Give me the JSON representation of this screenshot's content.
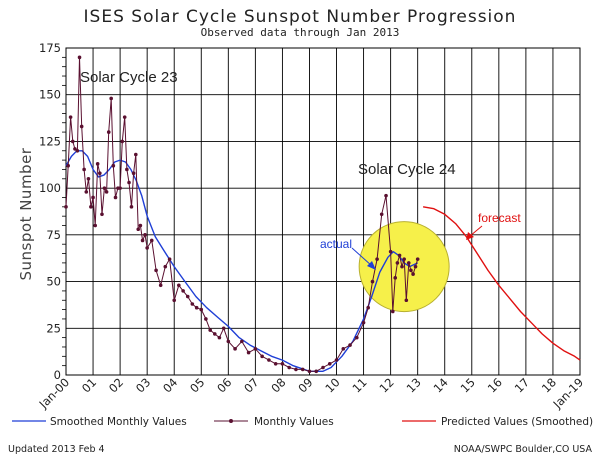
{
  "chart_data": {
    "type": "line",
    "title": "ISES Solar Cycle Sunspot Number Progression",
    "subtitle": "Observed data through Jan 2013",
    "ylabel": "Sunspot Number",
    "xlabel": "",
    "ylim": [
      0,
      175
    ],
    "yticks": [
      0,
      25,
      50,
      75,
      100,
      125,
      150,
      175
    ],
    "xlim": [
      2000.0,
      2019.0
    ],
    "x_tick_labels": [
      {
        "x": 2000,
        "label": "Jan-00"
      },
      {
        "x": 2001,
        "label": "01"
      },
      {
        "x": 2002,
        "label": "02"
      },
      {
        "x": 2003,
        "label": "03"
      },
      {
        "x": 2004,
        "label": "04"
      },
      {
        "x": 2005,
        "label": "05"
      },
      {
        "x": 2006,
        "label": "06"
      },
      {
        "x": 2007,
        "label": "07"
      },
      {
        "x": 2008,
        "label": "08"
      },
      {
        "x": 2009,
        "label": "09"
      },
      {
        "x": 2010,
        "label": "10"
      },
      {
        "x": 2011,
        "label": "11"
      },
      {
        "x": 2012,
        "label": "12"
      },
      {
        "x": 2013,
        "label": "13"
      },
      {
        "x": 2014,
        "label": "14"
      },
      {
        "x": 2015,
        "label": "15"
      },
      {
        "x": 2016,
        "label": "16"
      },
      {
        "x": 2017,
        "label": "17"
      },
      {
        "x": 2018,
        "label": "18"
      },
      {
        "x": 2019,
        "label": "Jan-19"
      }
    ],
    "grid": true,
    "legend_position": "bottom",
    "colors": {
      "smoothed": "#1f3fd6",
      "monthly": "#5a1030",
      "predicted": "#e01010",
      "highlight_fill": "#f6f04a",
      "grid": "#000000"
    },
    "annotations": {
      "cycle23": "Solar Cycle 23",
      "cycle24": "Solar Cycle 24",
      "actual": "actual",
      "forecast": "forecast"
    },
    "series": [
      {
        "name": "Smoothed Monthly Values",
        "style": "line",
        "x": [
          2000.0,
          2000.2,
          2000.4,
          2000.6,
          2000.8,
          2001.0,
          2001.2,
          2001.4,
          2001.6,
          2001.8,
          2002.0,
          2002.2,
          2002.4,
          2002.6,
          2002.8,
          2003.0,
          2003.3,
          2003.6,
          2004.0,
          2004.4,
          2004.8,
          2005.2,
          2005.6,
          2006.0,
          2006.4,
          2006.8,
          2007.2,
          2007.6,
          2008.0,
          2008.4,
          2008.8,
          2009.0,
          2009.2,
          2009.5,
          2009.8,
          2010.2,
          2010.6,
          2011.0,
          2011.3,
          2011.6,
          2011.9,
          2012.1,
          2012.3,
          2012.5,
          2012.7,
          2013.0
        ],
        "values": [
          112,
          117,
          120,
          120,
          117,
          110,
          106,
          107,
          110,
          114,
          115,
          114,
          110,
          104,
          96,
          85,
          74,
          67,
          58,
          50,
          42,
          36,
          31,
          26,
          20,
          16,
          13,
          10,
          8,
          5,
          3,
          2,
          2,
          2,
          4,
          10,
          18,
          30,
          42,
          55,
          63,
          66,
          64,
          60,
          58,
          60
        ]
      },
      {
        "name": "Monthly Values",
        "style": "line-markers",
        "x": [
          2000.0,
          2000.08,
          2000.17,
          2000.25,
          2000.33,
          2000.42,
          2000.5,
          2000.58,
          2000.67,
          2000.75,
          2000.83,
          2000.92,
          2001.0,
          2001.08,
          2001.17,
          2001.25,
          2001.33,
          2001.42,
          2001.5,
          2001.58,
          2001.67,
          2001.75,
          2001.83,
          2001.92,
          2002.0,
          2002.08,
          2002.17,
          2002.25,
          2002.33,
          2002.42,
          2002.5,
          2002.58,
          2002.67,
          2002.75,
          2002.83,
          2002.92,
          2003.0,
          2003.17,
          2003.33,
          2003.5,
          2003.67,
          2003.83,
          2004.0,
          2004.17,
          2004.33,
          2004.5,
          2004.67,
          2004.83,
          2005.0,
          2005.17,
          2005.33,
          2005.5,
          2005.67,
          2005.83,
          2006.0,
          2006.25,
          2006.5,
          2006.75,
          2007.0,
          2007.25,
          2007.5,
          2007.75,
          2008.0,
          2008.25,
          2008.5,
          2008.75,
          2009.0,
          2009.25,
          2009.5,
          2009.75,
          2010.0,
          2010.25,
          2010.5,
          2010.75,
          2011.0,
          2011.17,
          2011.33,
          2011.5,
          2011.67,
          2011.83,
          2012.0,
          2012.08,
          2012.17,
          2012.25,
          2012.33,
          2012.42,
          2012.5,
          2012.58,
          2012.67,
          2012.75,
          2012.83,
          2012.92,
          2013.0
        ],
        "values": [
          90,
          112,
          138,
          125,
          121,
          120,
          170,
          133,
          110,
          98,
          105,
          90,
          95,
          80,
          113,
          108,
          86,
          100,
          98,
          130,
          148,
          112,
          95,
          100,
          100,
          125,
          138,
          110,
          103,
          90,
          108,
          118,
          78,
          80,
          72,
          75,
          68,
          72,
          56,
          48,
          58,
          62,
          40,
          48,
          45,
          42,
          38,
          36,
          35,
          30,
          24,
          22,
          20,
          25,
          18,
          14,
          18,
          12,
          14,
          10,
          8,
          6,
          6,
          4,
          3,
          3,
          2,
          2,
          4,
          6,
          8,
          14,
          16,
          20,
          28,
          36,
          50,
          62,
          86,
          96,
          66,
          34,
          52,
          60,
          64,
          58,
          62,
          40,
          60,
          56,
          54,
          58,
          62
        ]
      },
      {
        "name": "Predicted Values (Smoothed)",
        "style": "line",
        "x": [
          2013.2,
          2013.6,
          2014.0,
          2014.4,
          2014.8,
          2015.2,
          2015.6,
          2016.0,
          2016.4,
          2016.8,
          2017.2,
          2017.6,
          2018.0,
          2018.4,
          2018.8,
          2019.0
        ],
        "values": [
          90,
          89,
          86,
          81,
          74,
          65,
          56,
          48,
          41,
          34,
          28,
          22,
          17,
          13,
          10,
          8
        ]
      }
    ]
  },
  "legend": {
    "smoothed": "Smoothed Monthly Values",
    "monthly": "Monthly Values",
    "predicted": "Predicted Values (Smoothed)"
  },
  "footer": {
    "updated": "Updated 2013 Feb  4",
    "credit": "NOAA/SWPC Boulder,CO USA"
  }
}
